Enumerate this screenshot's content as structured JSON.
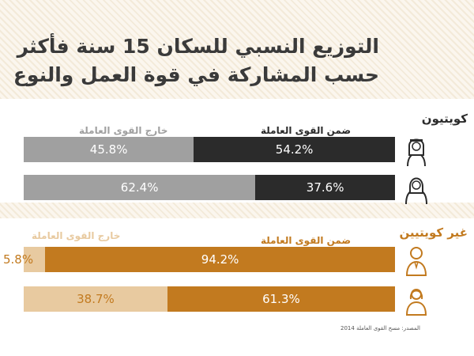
{
  "title": {
    "line1": "التوزيع النسبي للسكان 15 سنة فأكثر",
    "line2": "حسب المشاركة في قوة العمل والنوع"
  },
  "labels": {
    "within": "ضمن القوى العاملة",
    "outside": "خارج القوى العاملة"
  },
  "colors": {
    "kuwaiti_within": "#2b2b2b",
    "kuwaiti_outside": "#a0a0a0",
    "nonkuwaiti_within": "#c27a1f",
    "nonkuwaiti_outside": "#e8caa0"
  },
  "chart_data": {
    "type": "bar",
    "orientation": "horizontal",
    "stacked": true,
    "groups": [
      {
        "name": "كويتيون",
        "rows": [
          {
            "icon": "man-icon",
            "within": 54.2,
            "outside": 45.8,
            "within_label": "54.2%",
            "outside_label": "45.8%"
          },
          {
            "icon": "woman-icon",
            "within": 37.6,
            "outside": 62.4,
            "within_label": "37.6%",
            "outside_label": "62.4%"
          }
        ]
      },
      {
        "name": "غير كويتيين",
        "rows": [
          {
            "icon": "man-icon",
            "within": 94.2,
            "outside": 5.8,
            "within_label": "94.2%",
            "outside_label": "5.8%"
          },
          {
            "icon": "woman-icon",
            "within": 61.3,
            "outside": 38.7,
            "within_label": "61.3%",
            "outside_label": "38.7%"
          }
        ]
      }
    ],
    "series": [
      {
        "name": "ضمن القوى العاملة"
      },
      {
        "name": "خارج القوى العاملة"
      }
    ]
  },
  "footnote": "المصدر: مسح القوى العاملة 2014"
}
